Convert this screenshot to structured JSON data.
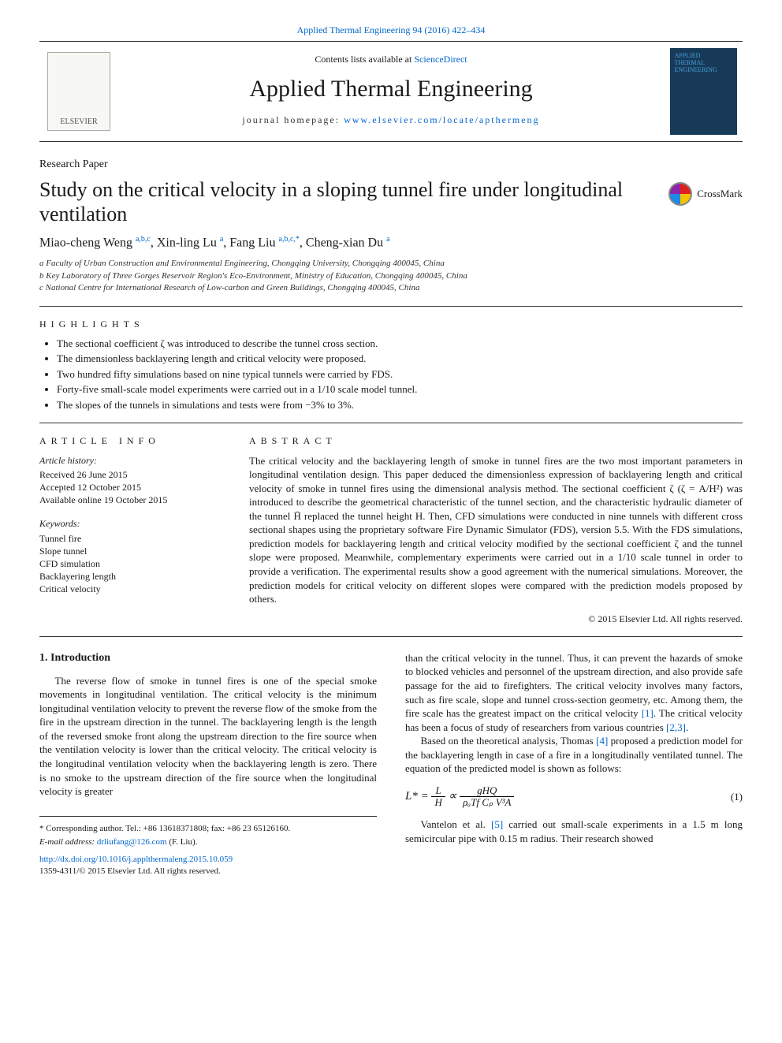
{
  "top_link": "Applied Thermal Engineering 94 (2016) 422–434",
  "masthead": {
    "contents_prefix": "Contents lists available at ",
    "contents_link": "ScienceDirect",
    "journal_title": "Applied Thermal Engineering",
    "homepage_prefix": "journal homepage: ",
    "homepage_url": "www.elsevier.com/locate/apthermeng",
    "publisher_label": "ELSEVIER",
    "cover_text": "APPLIED THERMAL ENGINEERING"
  },
  "paper_type": "Research Paper",
  "title": "Study on the critical velocity in a sloping tunnel fire under longitudinal ventilation",
  "crossmark_label": "CrossMark",
  "authors_html": {
    "a1_name": "Miao-cheng Weng ",
    "a1_sup": "a,b,c",
    "sep1": ", ",
    "a2_name": "Xin-ling Lu ",
    "a2_sup": "a",
    "sep2": ", ",
    "a3_name": "Fang Liu ",
    "a3_sup": "a,b,c,",
    "a3_star": "*",
    "sep3": ", ",
    "a4_name": "Cheng-xian Du ",
    "a4_sup": "a"
  },
  "affiliations": {
    "a": "a Faculty of Urban Construction and Environmental Engineering, Chongqing University, Chongqing 400045, China",
    "b": "b Key Laboratory of Three Gorges Reservoir Region's Eco-Environment, Ministry of Education, Chongqing 400045, China",
    "c": "c National Centre for International Research of Low-carbon and Green Buildings, Chongqing 400045, China"
  },
  "highlights": {
    "heading": "HIGHLIGHTS",
    "items": [
      "The sectional coefficient ζ was introduced to describe the tunnel cross section.",
      "The dimensionless backlayering length and critical velocity were proposed.",
      "Two hundred fifty simulations based on nine typical tunnels were carried by FDS.",
      "Forty-five small-scale model experiments were carried out in a 1/10 scale model tunnel.",
      "The slopes of the tunnels in simulations and tests were from −3% to 3%."
    ]
  },
  "article_info": {
    "heading": "ARTICLE INFO",
    "history_h": "Article history:",
    "received": "Received 26 June 2015",
    "accepted": "Accepted 12 October 2015",
    "online": "Available online 19 October 2015",
    "keywords_h": "Keywords:",
    "keywords": [
      "Tunnel fire",
      "Slope tunnel",
      "CFD simulation",
      "Backlayering length",
      "Critical velocity"
    ]
  },
  "abstract": {
    "heading": "ABSTRACT",
    "text": "The critical velocity and the backlayering length of smoke in tunnel fires are the two most important parameters in longitudinal ventilation design. This paper deduced the dimensionless expression of backlayering length and critical velocity of smoke in tunnel fires using the dimensional analysis method. The sectional coefficient ζ (ζ = A/H²) was introduced to describe the geometrical characteristic of the tunnel section, and the characteristic hydraulic diameter of the tunnel H̄ replaced the tunnel height H. Then, CFD simulations were conducted in nine tunnels with different cross sectional shapes using the proprietary software Fire Dynamic Simulator (FDS), version 5.5. With the FDS simulations, prediction models for backlayering length and critical velocity modified by the sectional coefficient ζ and the tunnel slope were proposed. Meanwhile, complementary experiments were carried out in a 1/10 scale tunnel in order to provide a verification. The experimental results show a good agreement with the numerical simulations. Moreover, the prediction models for critical velocity on different slopes were compared with the prediction models proposed by others.",
    "copyright": "© 2015 Elsevier Ltd. All rights reserved."
  },
  "section1": {
    "heading": "1.  Introduction",
    "left_para": "The reverse flow of smoke in tunnel fires is one of the special smoke movements in longitudinal ventilation. The critical velocity is the minimum longitudinal ventilation velocity to prevent the reverse flow of the smoke from the fire in the upstream direction in the tunnel. The backlayering length is the length of the reversed smoke front along the upstream direction to the fire source when the ventilation velocity is lower than the critical velocity. The critical velocity is the longitudinal ventilation velocity when the backlayering length is zero. There is no smoke to the upstream direction of the fire source when the longitudinal velocity is greater",
    "right_para1_a": "than the critical velocity in the tunnel. Thus, it can prevent the hazards of smoke to blocked vehicles and personnel of the upstream direction, and also provide safe passage for the aid to firefighters. The critical velocity involves many factors, such as fire scale, slope and tunnel cross-section geometry, etc. Among them, the fire scale has the greatest impact on the critical velocity ",
    "right_para1_ref1": "[1]",
    "right_para1_b": ". The critical velocity has been a focus of study of researchers from various countries ",
    "right_para1_ref2": "[2,3]",
    "right_para1_c": ".",
    "right_para2_a": "Based on the theoretical analysis, Thomas ",
    "right_para2_ref": "[4]",
    "right_para2_b": " proposed a prediction model for the backlayering length in case of a fire in a longitudinally ventilated tunnel. The equation of the predicted model is shown as follows:",
    "eq_num": "(1)",
    "right_para3_a": "Vantelon et al. ",
    "right_para3_ref": "[5]",
    "right_para3_b": " carried out small-scale experiments in a 1.5 m long semicircular pipe with 0.15 m radius. Their research showed"
  },
  "equation": {
    "lhs_L": "L",
    "lhs_H": "H",
    "lhs_Lstar": "L* = ",
    "prop": " ∝ ",
    "num": "gHQ",
    "den": "ρₐTf Cₚ V³A"
  },
  "footer": {
    "corr": "* Corresponding author. Tel.: +86 13618371808; fax: +86 23 65126160.",
    "email_label": "E-mail address: ",
    "email": "drliufang@126.com",
    "email_tail": " (F. Liu).",
    "doi": "http://dx.doi.org/10.1016/j.applthermaleng.2015.10.059",
    "issn": "1359-4311/© 2015 Elsevier Ltd. All rights reserved."
  },
  "colors": {
    "link": "#0066cc",
    "rule": "#333333",
    "cover_bg": "#173a59"
  }
}
